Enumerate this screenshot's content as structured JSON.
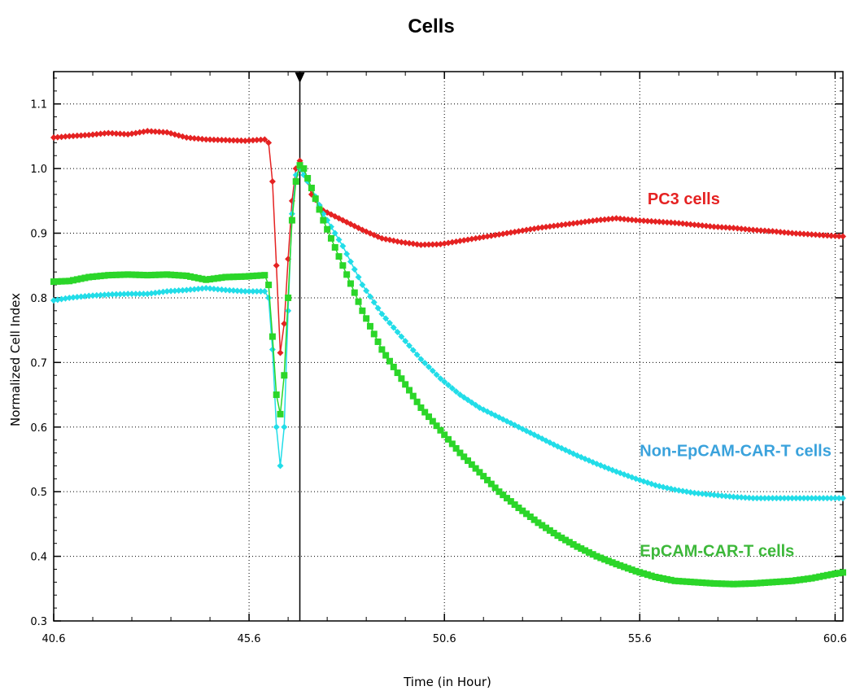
{
  "chart_data": {
    "type": "line",
    "title": "Cells",
    "xlabel": "Time (in Hour)",
    "ylabel": "Normalized Cell Index",
    "xlim": [
      40.6,
      60.8
    ],
    "ylim": [
      0.3,
      1.15
    ],
    "x_ticks": [
      40.6,
      45.6,
      50.6,
      55.6,
      60.6
    ],
    "x_tick_labels": [
      "40.6",
      "45.6",
      "50.6",
      "55.6",
      "60.6"
    ],
    "y_ticks": [
      0.3,
      0.4,
      0.5,
      0.6,
      0.7,
      0.8,
      0.9,
      1.0,
      1.1
    ],
    "y_tick_labels": [
      "0.3",
      "0.4",
      "0.5",
      "0.6",
      "0.7",
      "0.8",
      "0.9",
      "1.0",
      "1.1"
    ],
    "grid": true,
    "marker_line_x": 46.9,
    "series": [
      {
        "name": "PC3 cells",
        "color": "#e52222",
        "marker": "diamond",
        "label_position": [
          55.8,
          0.945
        ],
        "points": [
          [
            40.6,
            1.048
          ],
          [
            41.0,
            1.05
          ],
          [
            41.5,
            1.052
          ],
          [
            42.0,
            1.055
          ],
          [
            42.5,
            1.053
          ],
          [
            43.0,
            1.058
          ],
          [
            43.5,
            1.056
          ],
          [
            44.0,
            1.048
          ],
          [
            44.5,
            1.045
          ],
          [
            45.0,
            1.044
          ],
          [
            45.5,
            1.043
          ],
          [
            46.0,
            1.045
          ],
          [
            46.1,
            1.04
          ],
          [
            46.2,
            0.98
          ],
          [
            46.3,
            0.85
          ],
          [
            46.4,
            0.715
          ],
          [
            46.5,
            0.76
          ],
          [
            46.6,
            0.86
          ],
          [
            46.7,
            0.95
          ],
          [
            46.8,
            1.0
          ],
          [
            46.9,
            1.012
          ],
          [
            47.0,
            1.0
          ],
          [
            47.2,
            0.96
          ],
          [
            47.5,
            0.935
          ],
          [
            48.0,
            0.92
          ],
          [
            48.5,
            0.905
          ],
          [
            49.0,
            0.892
          ],
          [
            49.5,
            0.886
          ],
          [
            50.0,
            0.882
          ],
          [
            50.5,
            0.883
          ],
          [
            51.0,
            0.888
          ],
          [
            51.5,
            0.893
          ],
          [
            52.0,
            0.898
          ],
          [
            52.5,
            0.903
          ],
          [
            53.0,
            0.908
          ],
          [
            53.5,
            0.912
          ],
          [
            54.0,
            0.916
          ],
          [
            54.5,
            0.92
          ],
          [
            55.0,
            0.923
          ],
          [
            55.5,
            0.92
          ],
          [
            56.0,
            0.918
          ],
          [
            56.5,
            0.916
          ],
          [
            57.0,
            0.913
          ],
          [
            57.5,
            0.91
          ],
          [
            58.0,
            0.908
          ],
          [
            58.5,
            0.905
          ],
          [
            59.0,
            0.903
          ],
          [
            59.5,
            0.9
          ],
          [
            60.0,
            0.898
          ],
          [
            60.5,
            0.896
          ],
          [
            60.8,
            0.895
          ]
        ]
      },
      {
        "name": "Non-EpCAM-CAR-T cells",
        "color": "#22dde8",
        "label_color": "#3aa2dc",
        "marker": "diamond",
        "label_position": [
          55.6,
          0.555
        ],
        "points": [
          [
            40.6,
            0.796
          ],
          [
            41.0,
            0.8
          ],
          [
            41.5,
            0.803
          ],
          [
            42.0,
            0.805
          ],
          [
            42.5,
            0.806
          ],
          [
            43.0,
            0.806
          ],
          [
            43.5,
            0.81
          ],
          [
            44.0,
            0.812
          ],
          [
            44.5,
            0.815
          ],
          [
            45.0,
            0.812
          ],
          [
            45.5,
            0.81
          ],
          [
            46.0,
            0.81
          ],
          [
            46.1,
            0.8
          ],
          [
            46.2,
            0.72
          ],
          [
            46.3,
            0.6
          ],
          [
            46.4,
            0.54
          ],
          [
            46.5,
            0.6
          ],
          [
            46.6,
            0.78
          ],
          [
            46.7,
            0.93
          ],
          [
            46.8,
            0.99
          ],
          [
            46.9,
            1.0
          ],
          [
            47.0,
            0.99
          ],
          [
            47.2,
            0.97
          ],
          [
            47.5,
            0.93
          ],
          [
            48.0,
            0.88
          ],
          [
            48.5,
            0.82
          ],
          [
            49.0,
            0.775
          ],
          [
            49.5,
            0.74
          ],
          [
            50.0,
            0.705
          ],
          [
            50.5,
            0.675
          ],
          [
            51.0,
            0.65
          ],
          [
            51.5,
            0.63
          ],
          [
            52.0,
            0.615
          ],
          [
            52.5,
            0.6
          ],
          [
            53.0,
            0.585
          ],
          [
            53.5,
            0.57
          ],
          [
            54.0,
            0.556
          ],
          [
            54.5,
            0.543
          ],
          [
            55.0,
            0.531
          ],
          [
            55.5,
            0.52
          ],
          [
            56.0,
            0.51
          ],
          [
            56.5,
            0.503
          ],
          [
            57.0,
            0.498
          ],
          [
            57.5,
            0.495
          ],
          [
            58.0,
            0.492
          ],
          [
            58.5,
            0.49
          ],
          [
            59.0,
            0.49
          ],
          [
            59.5,
            0.49
          ],
          [
            60.0,
            0.49
          ],
          [
            60.5,
            0.49
          ],
          [
            60.8,
            0.49
          ]
        ]
      },
      {
        "name": "EpCAM-CAR-T cells",
        "color": "#2bd629",
        "label_color": "#3db83a",
        "marker": "square",
        "label_position": [
          55.6,
          0.4
        ],
        "points": [
          [
            40.6,
            0.825
          ],
          [
            41.0,
            0.826
          ],
          [
            41.5,
            0.832
          ],
          [
            42.0,
            0.835
          ],
          [
            42.5,
            0.836
          ],
          [
            43.0,
            0.835
          ],
          [
            43.5,
            0.836
          ],
          [
            44.0,
            0.834
          ],
          [
            44.5,
            0.828
          ],
          [
            45.0,
            0.832
          ],
          [
            45.5,
            0.833
          ],
          [
            46.0,
            0.835
          ],
          [
            46.1,
            0.82
          ],
          [
            46.2,
            0.74
          ],
          [
            46.3,
            0.65
          ],
          [
            46.4,
            0.62
          ],
          [
            46.5,
            0.68
          ],
          [
            46.6,
            0.8
          ],
          [
            46.7,
            0.92
          ],
          [
            46.8,
            0.98
          ],
          [
            46.9,
            1.005
          ],
          [
            47.0,
            1.0
          ],
          [
            47.2,
            0.97
          ],
          [
            47.5,
            0.92
          ],
          [
            48.0,
            0.85
          ],
          [
            48.5,
            0.78
          ],
          [
            49.0,
            0.72
          ],
          [
            49.5,
            0.675
          ],
          [
            50.0,
            0.63
          ],
          [
            50.5,
            0.595
          ],
          [
            51.0,
            0.56
          ],
          [
            51.5,
            0.53
          ],
          [
            52.0,
            0.5
          ],
          [
            52.5,
            0.475
          ],
          [
            53.0,
            0.452
          ],
          [
            53.5,
            0.432
          ],
          [
            54.0,
            0.415
          ],
          [
            54.5,
            0.4
          ],
          [
            55.0,
            0.388
          ],
          [
            55.5,
            0.377
          ],
          [
            56.0,
            0.368
          ],
          [
            56.5,
            0.362
          ],
          [
            57.0,
            0.36
          ],
          [
            57.5,
            0.358
          ],
          [
            58.0,
            0.357
          ],
          [
            58.5,
            0.358
          ],
          [
            59.0,
            0.36
          ],
          [
            59.5,
            0.362
          ],
          [
            60.0,
            0.366
          ],
          [
            60.5,
            0.372
          ],
          [
            60.8,
            0.375
          ]
        ]
      }
    ]
  }
}
